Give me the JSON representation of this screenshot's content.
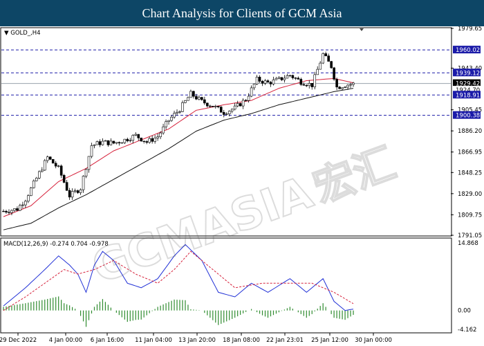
{
  "header": {
    "title": "Chart Analysis for Clients of GCM Asia"
  },
  "chart_data": [
    {
      "type": "candlestick",
      "symbol_label": "GOLD_,H4",
      "ylim": [
        1791.05,
        1979.65
      ],
      "y_ticks": [
        "1979.65",
        "1943.40",
        "1905.45",
        "1886.20",
        "1866.95",
        "1848.25",
        "1829.00",
        "1809.75",
        "1791.05"
      ],
      "price_labels": [
        {
          "value": "1960.02",
          "style": "blue"
        },
        {
          "value": "1939.12",
          "style": "blue"
        },
        {
          "value": "1929.42",
          "style": "dark"
        },
        {
          "value": "1924.70",
          "style": "plain"
        },
        {
          "value": "1918.91",
          "style": "blue"
        },
        {
          "value": "1900.38",
          "style": "blue"
        }
      ],
      "horizontal_lines": [
        1960.02,
        1939.12,
        1918.91,
        1900.38
      ],
      "current_price": 1929.42,
      "x_labels": [
        "29 Dec 2022",
        "4 Jan 00:00",
        "6 Jan 16:00",
        "11 Jan 04:00",
        "13 Jan 20:00",
        "18 Jan 08:00",
        "22 Jan 23:01",
        "25 Jan 12:00",
        "30 Jan 00:00"
      ],
      "close_path": [
        [
          0,
          1813
        ],
        [
          5,
          1815
        ],
        [
          8,
          1824
        ],
        [
          12,
          1843
        ],
        [
          16,
          1862
        ],
        [
          20,
          1852
        ],
        [
          24,
          1827
        ],
        [
          28,
          1834
        ],
        [
          32,
          1873
        ],
        [
          36,
          1876
        ],
        [
          40,
          1875
        ],
        [
          44,
          1878
        ],
        [
          48,
          1882
        ],
        [
          52,
          1876
        ],
        [
          56,
          1881
        ],
        [
          60,
          1896
        ],
        [
          64,
          1906
        ],
        [
          68,
          1920
        ],
        [
          72,
          1913
        ],
        [
          76,
          1909
        ],
        [
          80,
          1903
        ],
        [
          84,
          1907
        ],
        [
          88,
          1915
        ],
        [
          92,
          1933
        ],
        [
          96,
          1930
        ],
        [
          100,
          1933
        ],
        [
          104,
          1937
        ],
        [
          108,
          1931
        ],
        [
          112,
          1928
        ],
        [
          116,
          1956
        ],
        [
          119,
          1945
        ],
        [
          121,
          1926
        ],
        [
          124,
          1928
        ],
        [
          127,
          1929
        ]
      ],
      "sma_red": [
        [
          0,
          1808
        ],
        [
          10,
          1818
        ],
        [
          20,
          1840
        ],
        [
          30,
          1852
        ],
        [
          40,
          1868
        ],
        [
          50,
          1878
        ],
        [
          60,
          1888
        ],
        [
          70,
          1905
        ],
        [
          80,
          1910
        ],
        [
          90,
          1914
        ],
        [
          100,
          1925
        ],
        [
          110,
          1932
        ],
        [
          120,
          1934
        ],
        [
          127,
          1930
        ]
      ],
      "sma_black": [
        [
          0,
          1796
        ],
        [
          10,
          1802
        ],
        [
          20,
          1816
        ],
        [
          30,
          1828
        ],
        [
          40,
          1842
        ],
        [
          50,
          1856
        ],
        [
          60,
          1870
        ],
        [
          70,
          1886
        ],
        [
          80,
          1896
        ],
        [
          90,
          1902
        ],
        [
          100,
          1910
        ],
        [
          110,
          1916
        ],
        [
          120,
          1922
        ],
        [
          127,
          1925
        ]
      ],
      "indicator": {
        "label": "MACD(12,26,9) -0.274 0.704 -0.978",
        "y_ticks": [
          "14.868",
          "0.00",
          "-4.162"
        ],
        "ylim": [
          -4.162,
          14.868
        ]
      }
    }
  ]
}
